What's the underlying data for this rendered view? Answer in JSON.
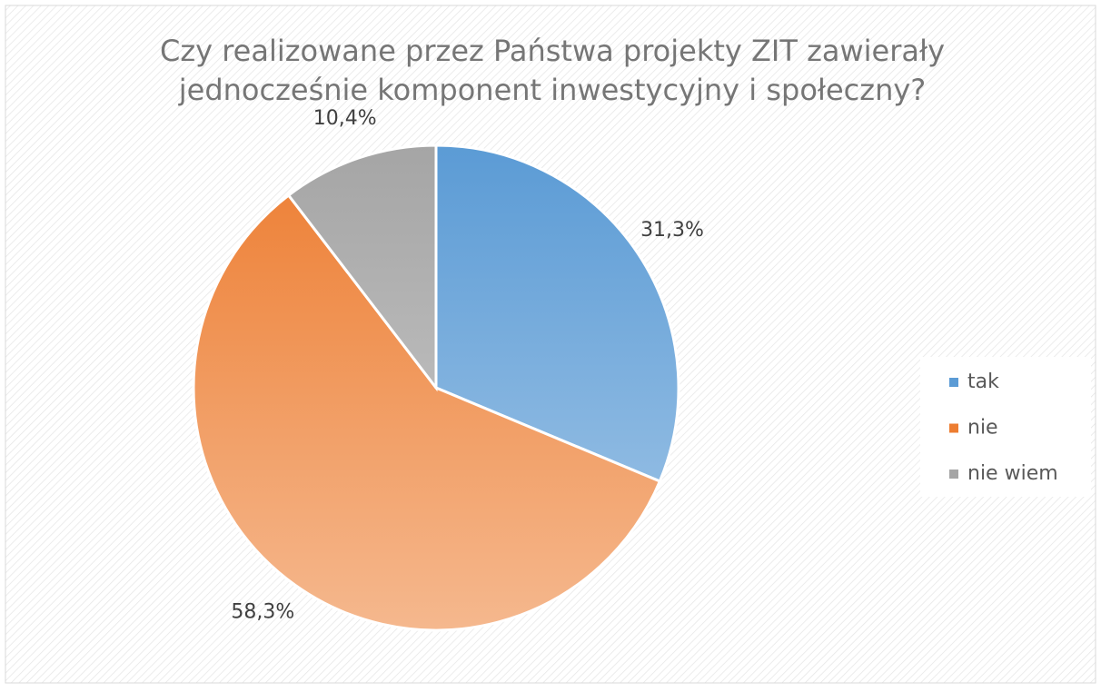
{
  "chart_data": {
    "type": "pie",
    "title": "Czy realizowane przez Państwa projekty ZIT zawierały",
    "subtitle": "jednocześnie komponent inwestycyjny i społeczny?",
    "categories": [
      "tak",
      "nie",
      "nie wiem"
    ],
    "values": [
      31.3,
      58.3,
      10.4
    ],
    "value_labels": [
      "31,3%",
      "58,3%",
      "10,4%"
    ],
    "colors": [
      "#5b9bd5",
      "#ed7d31",
      "#a5a5a5"
    ],
    "legend": "right"
  }
}
